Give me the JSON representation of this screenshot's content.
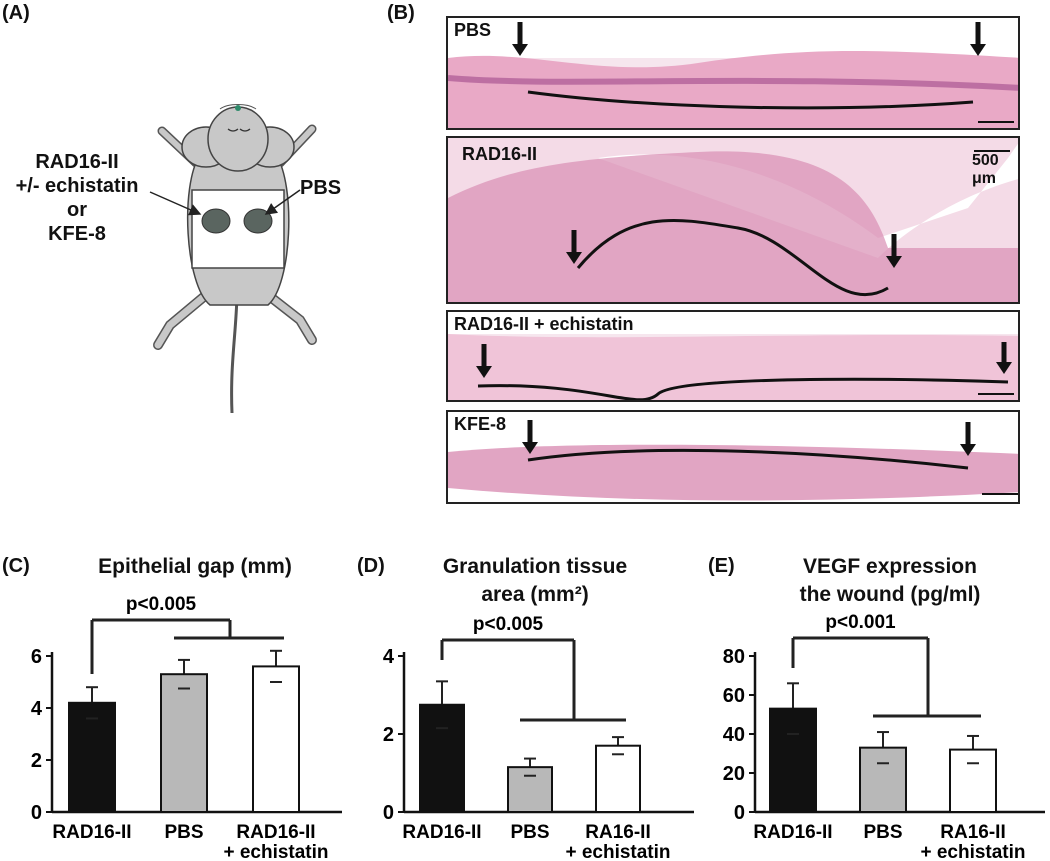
{
  "panel_a": {
    "label": "(A)",
    "left_text": [
      "RAD16-II",
      "+/- echistatin",
      "or",
      "KFE-8"
    ],
    "right_text": "PBS"
  },
  "panel_b": {
    "label": "(B)",
    "sections": [
      {
        "label": "PBS"
      },
      {
        "label": "RAD16-II"
      },
      {
        "label": "RAD16-II + echistatin"
      },
      {
        "label": "KFE-8"
      }
    ],
    "scale_bar_label": "500 μm"
  },
  "chart_data": [
    {
      "type": "bar",
      "panel": "(C)",
      "title": "Epithelial gap (mm)",
      "categories": [
        "RAD16-II",
        "PBS",
        "RAD16-II\n+ echistatin"
      ],
      "values": [
        4.2,
        5.3,
        5.6
      ],
      "errors": [
        0.6,
        0.55,
        0.6
      ],
      "colors": [
        "#111111",
        "#b8b8b8",
        "#ffffff"
      ],
      "ylim": [
        0,
        6
      ],
      "yticks": [
        0,
        2,
        4,
        6
      ],
      "annotation": "p<0.005"
    },
    {
      "type": "bar",
      "panel": "(D)",
      "title": "Granulation tissue\narea (mm²)",
      "categories": [
        "RAD16-II",
        "PBS",
        "RA16-II\n+ echistatin"
      ],
      "values": [
        2.75,
        1.15,
        1.7
      ],
      "errors": [
        0.6,
        0.22,
        0.22
      ],
      "colors": [
        "#111111",
        "#b8b8b8",
        "#ffffff"
      ],
      "ylim": [
        0,
        4
      ],
      "yticks": [
        0,
        2,
        4
      ],
      "annotation": "p<0.005"
    },
    {
      "type": "bar",
      "panel": "(E)",
      "title": "VEGF expression\nthe wound (pg/ml)",
      "categories": [
        "RAD16-II",
        "PBS",
        "RA16-II\n+ echistatin"
      ],
      "values": [
        53,
        33,
        32
      ],
      "errors": [
        13,
        8,
        7
      ],
      "colors": [
        "#111111",
        "#b8b8b8",
        "#ffffff"
      ],
      "ylim": [
        0,
        80
      ],
      "yticks": [
        0,
        20,
        40,
        60,
        80
      ],
      "annotation": "p<0.001"
    }
  ]
}
